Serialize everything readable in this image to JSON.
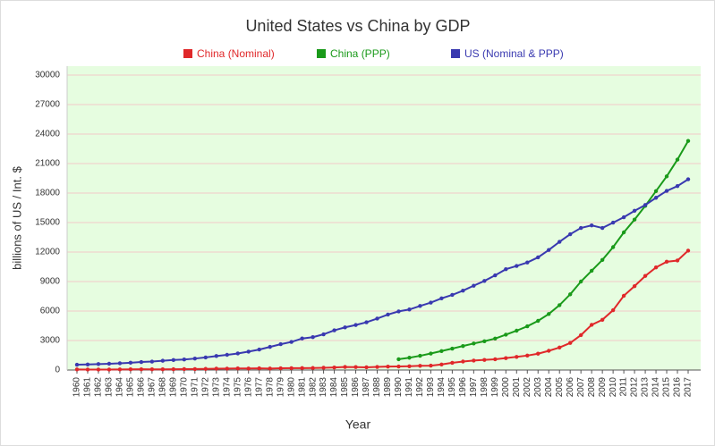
{
  "chart_data": {
    "type": "line",
    "title": "United States vs China by GDP",
    "x_label": "Year",
    "y_label": "billions of US / Int. $",
    "categories": [
      "1960",
      "1961",
      "1962",
      "1963",
      "1964",
      "1965",
      "1966",
      "1967",
      "1968",
      "1969",
      "1970",
      "1971",
      "1972",
      "1973",
      "1974",
      "1975",
      "1976",
      "1977",
      "1978",
      "1979",
      "1980",
      "1981",
      "1982",
      "1983",
      "1984",
      "1985",
      "1986",
      "1987",
      "1988",
      "1989",
      "1990",
      "1991",
      "1992",
      "1993",
      "1994",
      "1995",
      "1996",
      "1997",
      "1998",
      "1999",
      "2000",
      "2001",
      "2002",
      "2003",
      "2004",
      "2005",
      "2006",
      "2007",
      "2008",
      "2009",
      "2010",
      "2011",
      "2012",
      "2013",
      "2014",
      "2015",
      "2016",
      "2017"
    ],
    "series": [
      {
        "name": "China (Nominal)",
        "color": "#e0282a",
        "values": [
          60,
          50,
          47,
          51,
          60,
          70,
          76,
          72,
          70,
          79,
          93,
          100,
          114,
          139,
          144,
          163,
          154,
          175,
          150,
          178,
          191,
          196,
          205,
          230,
          260,
          310,
          301,
          274,
          313,
          348,
          361,
          383,
          427,
          445,
          564,
          734,
          864,
          962,
          1029,
          1094,
          1211,
          1339,
          1471,
          1660,
          1955,
          2286,
          2752,
          3552,
          4598,
          5110,
          6087,
          7552,
          8532,
          9570,
          10439,
          11016,
          11138,
          12143
        ]
      },
      {
        "name": "China (PPP)",
        "color": "#1a9a1a",
        "values": [
          null,
          null,
          null,
          null,
          null,
          null,
          null,
          null,
          null,
          null,
          null,
          null,
          null,
          null,
          null,
          null,
          null,
          null,
          null,
          null,
          null,
          null,
          null,
          null,
          null,
          null,
          null,
          null,
          null,
          null,
          1100,
          1250,
          1450,
          1680,
          1930,
          2180,
          2440,
          2700,
          2930,
          3200,
          3600,
          4000,
          4450,
          5000,
          5700,
          6600,
          7700,
          9000,
          10100,
          11200,
          12500,
          14000,
          15300,
          16700,
          18200,
          19700,
          21400,
          23300
        ]
      },
      {
        "name": "US (Nominal & PPP)",
        "color": "#3939b0",
        "values": [
          543,
          563,
          605,
          639,
          686,
          744,
          815,
          862,
          943,
          1019,
          1073,
          1165,
          1280,
          1425,
          1545,
          1685,
          1873,
          2082,
          2352,
          2627,
          2857,
          3207,
          3343,
          3634,
          4037,
          4339,
          4580,
          4855,
          5236,
          5642,
          5963,
          6158,
          6520,
          6859,
          7287,
          7640,
          8073,
          8578,
          9063,
          9631,
          10252,
          10582,
          10936,
          11458,
          12214,
          13037,
          13815,
          14452,
          14713,
          14449,
          14992,
          15543,
          16197,
          16785,
          17522,
          18219,
          18707,
          19400
        ]
      }
    ],
    "ylim": [
      0,
      30000
    ],
    "yticks": [
      0,
      3000,
      6000,
      9000,
      12000,
      15000,
      18000,
      21000,
      24000,
      27000,
      30000
    ],
    "grid": true,
    "legend": "top"
  }
}
